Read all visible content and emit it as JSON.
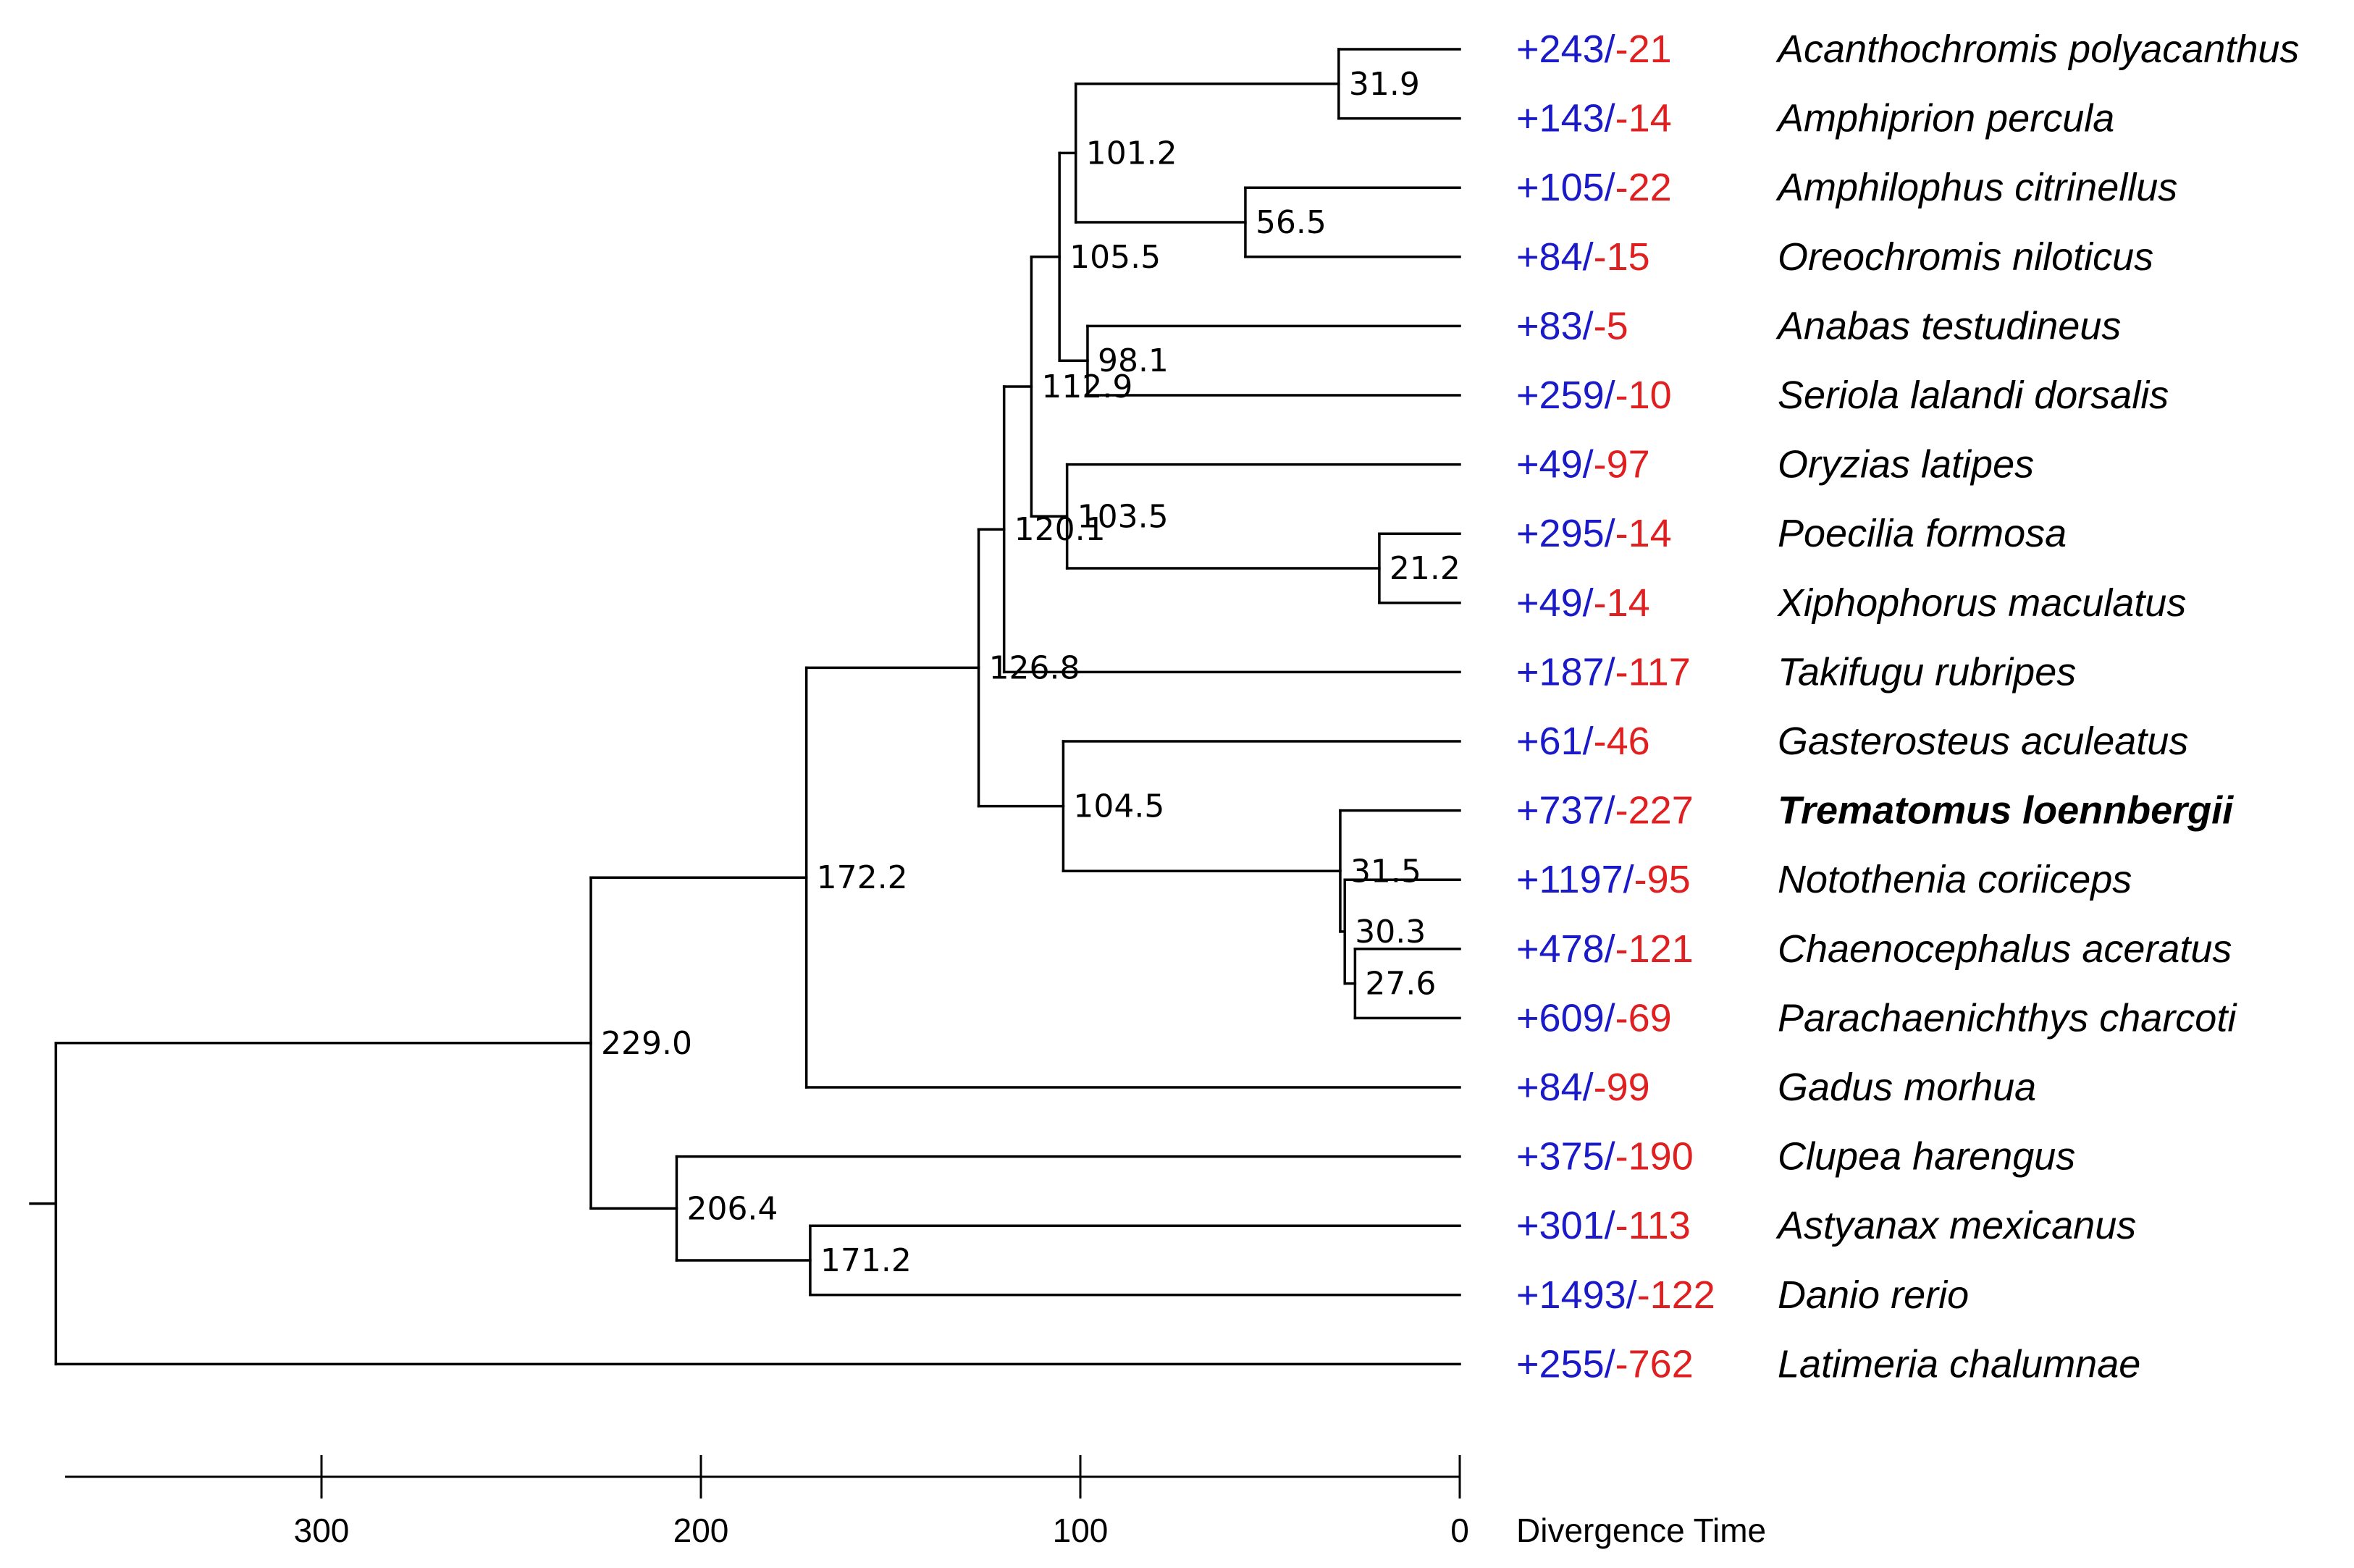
{
  "tree": {
    "axis_title": "Divergence Time",
    "root_age": 370,
    "axis_ticks": [
      300,
      200,
      100,
      0
    ],
    "colors": {
      "gain": "#1a1ac8",
      "loss": "#e02020",
      "branch": "#000000"
    },
    "taxa": [
      {
        "name": "Acanthochromis polyacanthus",
        "gain": "+243",
        "loss": "-21",
        "bold": false
      },
      {
        "name": "Amphiprion percula",
        "gain": "+143",
        "loss": "-14",
        "bold": false
      },
      {
        "name": "Amphilophus citrinellus",
        "gain": "+105",
        "loss": "-22",
        "bold": false
      },
      {
        "name": "Oreochromis niloticus",
        "gain": "+84",
        "loss": "-15",
        "bold": false
      },
      {
        "name": "Anabas testudineus",
        "gain": "+83",
        "loss": "-5",
        "bold": false
      },
      {
        "name": "Seriola lalandi dorsalis",
        "gain": "+259",
        "loss": "-10",
        "bold": false
      },
      {
        "name": "Oryzias latipes",
        "gain": "+49",
        "loss": "-97",
        "bold": false
      },
      {
        "name": "Poecilia formosa",
        "gain": "+295",
        "loss": "-14",
        "bold": false
      },
      {
        "name": "Xiphophorus maculatus",
        "gain": "+49",
        "loss": "-14",
        "bold": false
      },
      {
        "name": "Takifugu rubripes",
        "gain": "+187",
        "loss": "-117",
        "bold": false
      },
      {
        "name": "Gasterosteus aculeatus",
        "gain": "+61",
        "loss": "-46",
        "bold": false
      },
      {
        "name": "Trematomus loennbergii",
        "gain": "+737",
        "loss": "-227",
        "bold": true
      },
      {
        "name": "Notothenia coriiceps",
        "gain": "+1197",
        "loss": "-95",
        "bold": false
      },
      {
        "name": "Chaenocephalus aceratus",
        "gain": "+478",
        "loss": "-121",
        "bold": false
      },
      {
        "name": "Parachaenichthys charcoti",
        "gain": "+609",
        "loss": "-69",
        "bold": false
      },
      {
        "name": "Gadus morhua",
        "gain": "+84",
        "loss": "-99",
        "bold": false
      },
      {
        "name": "Clupea harengus",
        "gain": "+375",
        "loss": "-190",
        "bold": false
      },
      {
        "name": "Astyanax mexicanus",
        "gain": "+301",
        "loss": "-113",
        "bold": false
      },
      {
        "name": "Danio rerio",
        "gain": "+1493",
        "loss": "-122",
        "bold": false
      },
      {
        "name": "Latimeria chalumnae",
        "gain": "+255",
        "loss": "-762",
        "bold": false
      }
    ],
    "nodes": [
      {
        "id": "n1",
        "age": 31.9,
        "label": "31.9",
        "children": [
          "Acanthochromis polyacanthus",
          "Amphiprion percula"
        ]
      },
      {
        "id": "n2",
        "age": 56.5,
        "label": "56.5",
        "children": [
          "Amphilophus citrinellus",
          "Oreochromis niloticus"
        ]
      },
      {
        "id": "n3",
        "age": 101.2,
        "label": "101.2",
        "children": [
          "n1",
          "n2"
        ]
      },
      {
        "id": "n4",
        "age": 98.1,
        "label": "98.1",
        "children": [
          "Anabas testudineus",
          "Seriola lalandi dorsalis"
        ]
      },
      {
        "id": "n5",
        "age": 105.5,
        "label": "105.5",
        "children": [
          "n3",
          "n4"
        ]
      },
      {
        "id": "n6",
        "age": 21.2,
        "label": "21.2",
        "children": [
          "Poecilia formosa",
          "Xiphophorus maculatus"
        ]
      },
      {
        "id": "n7",
        "age": 103.5,
        "label": "103.5",
        "children": [
          "Oryzias latipes",
          "n6"
        ]
      },
      {
        "id": "n8",
        "age": 112.9,
        "label": "112.9",
        "children": [
          "n5",
          "n7"
        ]
      },
      {
        "id": "n9",
        "age": 120.1,
        "label": "120.1",
        "children": [
          "n8",
          "Takifugu rubripes"
        ]
      },
      {
        "id": "n10",
        "age": 27.6,
        "label": "27.6",
        "children": [
          "Chaenocephalus aceratus",
          "Parachaenichthys charcoti"
        ]
      },
      {
        "id": "n11",
        "age": 30.3,
        "label": "30.3",
        "children": [
          "Notothenia coriiceps",
          "n10"
        ]
      },
      {
        "id": "n12",
        "age": 31.5,
        "label": "31.5",
        "children": [
          "Trematomus loennbergii",
          "n11"
        ]
      },
      {
        "id": "n13",
        "age": 104.5,
        "label": "104.5",
        "children": [
          "Gasterosteus aculeatus",
          "n12"
        ]
      },
      {
        "id": "n14",
        "age": 126.8,
        "label": "126.8",
        "children": [
          "n9",
          "n13"
        ]
      },
      {
        "id": "n15",
        "age": 172.2,
        "label": "172.2",
        "children": [
          "n14",
          "Gadus morhua"
        ]
      },
      {
        "id": "n16",
        "age": 171.2,
        "label": "171.2",
        "children": [
          "Astyanax mexicanus",
          "Danio rerio"
        ]
      },
      {
        "id": "n17",
        "age": 206.4,
        "label": "206.4",
        "children": [
          "Clupea harengus",
          "n16"
        ]
      },
      {
        "id": "n18",
        "age": 229.0,
        "label": "229.0",
        "children": [
          "n15",
          "n17"
        ]
      },
      {
        "id": "root",
        "age": 370,
        "label": "",
        "children": [
          "n18",
          "Latimeria chalumnae"
        ]
      }
    ]
  }
}
